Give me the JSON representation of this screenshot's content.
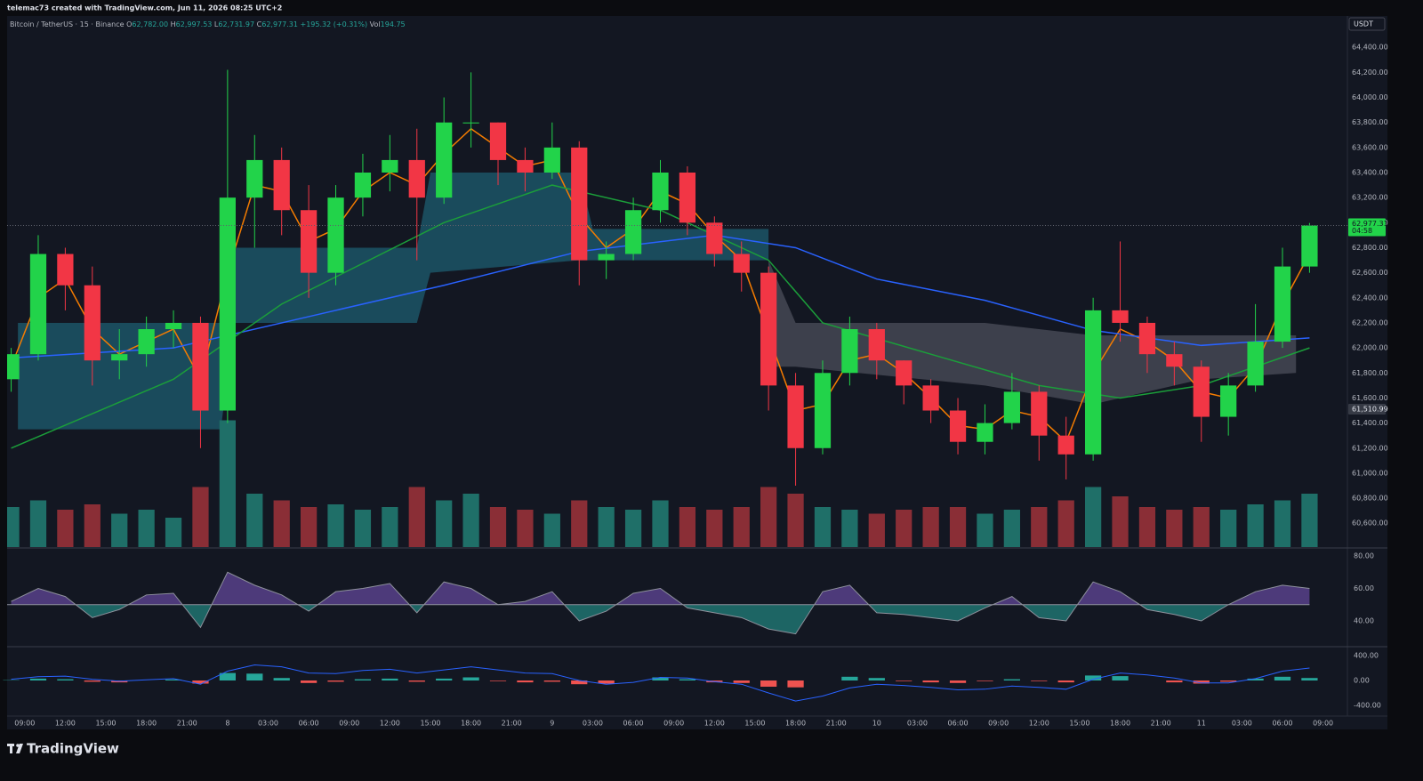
{
  "chart_data": {
    "type": "candlestick",
    "header": "telemac73 created with TradingView.com, Jun 11, 2026 08:25 UTC+2",
    "legend": {
      "symbol": "Bitcoin / TetherUS · 15 · Binance",
      "fields": [
        {
          "key": "O",
          "value": "62,782.00"
        },
        {
          "key": "H",
          "value": "62,997.53"
        },
        {
          "key": "L",
          "value": "62,731.97"
        },
        {
          "key": "C",
          "value": "62,977.31"
        }
      ],
      "change": "+195.32 (+0.31%)",
      "volume_key": "Vol",
      "volume": "194.75"
    },
    "currency": "USDT",
    "footer_brand": "TradingView",
    "xlim": [
      7.7,
      106.8
    ],
    "xticks": [
      {
        "value": 9,
        "label": "09:00"
      },
      {
        "value": 12,
        "label": "12:00"
      },
      {
        "value": 15,
        "label": "15:00"
      },
      {
        "value": 18,
        "label": "18:00"
      },
      {
        "value": 21,
        "label": "21:00"
      },
      {
        "value": 24,
        "label": "8"
      },
      {
        "value": 27,
        "label": "03:00"
      },
      {
        "value": 30,
        "label": "06:00"
      },
      {
        "value": 33,
        "label": "09:00"
      },
      {
        "value": 36,
        "label": "12:00"
      },
      {
        "value": 39,
        "label": "15:00"
      },
      {
        "value": 42,
        "label": "18:00"
      },
      {
        "value": 45,
        "label": "21:00"
      },
      {
        "value": 48,
        "label": "9"
      },
      {
        "value": 51,
        "label": "03:00"
      },
      {
        "value": 54,
        "label": "06:00"
      },
      {
        "value": 57,
        "label": "09:00"
      },
      {
        "value": 60,
        "label": "12:00"
      },
      {
        "value": 63,
        "label": "15:00"
      },
      {
        "value": 66,
        "label": "18:00"
      },
      {
        "value": 69,
        "label": "21:00"
      },
      {
        "value": 72,
        "label": "10"
      },
      {
        "value": 75,
        "label": "03:00"
      },
      {
        "value": 78,
        "label": "06:00"
      },
      {
        "value": 81,
        "label": "09:00"
      },
      {
        "value": 84,
        "label": "12:00"
      },
      {
        "value": 87,
        "label": "15:00"
      },
      {
        "value": 90,
        "label": "18:00"
      },
      {
        "value": 93,
        "label": "21:00"
      },
      {
        "value": 96,
        "label": "11"
      },
      {
        "value": 99,
        "label": "03:00"
      },
      {
        "value": 102,
        "label": "06:00"
      },
      {
        "value": 105,
        "label": "09:00"
      }
    ],
    "ylim": [
      60410,
      64650
    ],
    "yticks": [
      {
        "value": 60600,
        "label": "60,600.00"
      },
      {
        "value": 60800,
        "label": "60,800.00"
      },
      {
        "value": 61000,
        "label": "61,000.00"
      },
      {
        "value": 61200,
        "label": "61,200.00"
      },
      {
        "value": 61400,
        "label": "61,400.00"
      },
      {
        "value": 61600,
        "label": "61,600.00"
      },
      {
        "value": 61800,
        "label": "61,800.00"
      },
      {
        "value": 62000,
        "label": "62,000.00"
      },
      {
        "value": 62200,
        "label": "62,200.00"
      },
      {
        "value": 62400,
        "label": "62,400.00"
      },
      {
        "value": 62600,
        "label": "62,600.00"
      },
      {
        "value": 62800,
        "label": "62,800.00"
      },
      {
        "value": 63000,
        "label": "63,000.00"
      },
      {
        "value": 63200,
        "label": "63,200.00"
      },
      {
        "value": 63400,
        "label": "63,400.00"
      },
      {
        "value": 63600,
        "label": "63,600.00"
      },
      {
        "value": 63800,
        "label": "63,800.00"
      },
      {
        "value": 64000,
        "label": "64,000.00"
      },
      {
        "value": 64200,
        "label": "64,200.00"
      },
      {
        "value": 64400,
        "label": "64,400.00"
      }
    ],
    "grid": false,
    "up_color": "#22d34a",
    "down_color": "#f23645",
    "candles": {
      "x": [
        8,
        10,
        12,
        14,
        16,
        18,
        20,
        22,
        24,
        26,
        28,
        30,
        32,
        34,
        36,
        38,
        40,
        42,
        44,
        46,
        48,
        50,
        52,
        54,
        56,
        58,
        60,
        62,
        64,
        66,
        68,
        70,
        72,
        74,
        76,
        78,
        80,
        82,
        84,
        86,
        88,
        90,
        92,
        94,
        96,
        98,
        100,
        102,
        104
      ],
      "open": [
        61750,
        61950,
        62750,
        62500,
        61900,
        61950,
        62150,
        62200,
        61500,
        63200,
        63500,
        63100,
        62600,
        63200,
        63400,
        63500,
        63200,
        63800,
        63800,
        63500,
        63400,
        63600,
        62700,
        62750,
        63100,
        63400,
        63000,
        62750,
        62600,
        61700,
        61200,
        61800,
        62150,
        61900,
        61700,
        61500,
        61250,
        61400,
        61650,
        61300,
        61150,
        62300,
        62200,
        61950,
        61850,
        61450,
        61700,
        62050,
        62650
      ],
      "high": [
        62000,
        62900,
        62800,
        62650,
        62150,
        62250,
        62300,
        62250,
        64220,
        63700,
        63600,
        63300,
        63300,
        63550,
        63700,
        63750,
        64000,
        64200,
        63800,
        63600,
        63800,
        63650,
        62850,
        63200,
        63500,
        63450,
        63050,
        62850,
        62650,
        61800,
        61900,
        62250,
        62200,
        61900,
        61750,
        61600,
        61550,
        61800,
        61700,
        61450,
        62400,
        62850,
        62250,
        62050,
        61900,
        61800,
        62350,
        62800,
        62997.53
      ],
      "low": [
        61650,
        61900,
        62300,
        61700,
        61750,
        61850,
        62000,
        61200,
        61400,
        62800,
        62900,
        62400,
        62500,
        63050,
        63250,
        62700,
        63150,
        63600,
        63300,
        63250,
        63350,
        62500,
        62550,
        62700,
        63000,
        62900,
        62650,
        62450,
        61500,
        60900,
        61150,
        61700,
        61750,
        61550,
        61400,
        61150,
        61150,
        61350,
        61100,
        60950,
        61100,
        62050,
        61800,
        61700,
        61250,
        61300,
        61650,
        62000,
        62600
      ],
      "close": [
        61950,
        62750,
        62500,
        61900,
        61950,
        62150,
        62200,
        61500,
        63200,
        63500,
        63100,
        62600,
        63200,
        63400,
        63500,
        63200,
        63800,
        63800,
        63500,
        63400,
        63600,
        62700,
        62750,
        63100,
        63400,
        63000,
        62750,
        62600,
        61700,
        61200,
        61800,
        62150,
        61900,
        61700,
        61500,
        61250,
        61400,
        61650,
        61300,
        61150,
        62300,
        62200,
        61950,
        61850,
        61450,
        61700,
        62050,
        62650,
        62977.31
      ],
      "volume": [
        30,
        35,
        28,
        32,
        25,
        28,
        22,
        45,
        95,
        40,
        35,
        30,
        32,
        28,
        30,
        45,
        35,
        40,
        30,
        28,
        25,
        35,
        30,
        28,
        35,
        30,
        28,
        30,
        45,
        40,
        30,
        28,
        25,
        28,
        30,
        30,
        25,
        28,
        30,
        35,
        45,
        38,
        30,
        28,
        30,
        28,
        32,
        35,
        40
      ]
    },
    "volume_lim": [
      0,
      100
    ],
    "volume_up_color": "#1f6f68",
    "volume_down_color": "#8a2e36",
    "series": [
      {
        "color": "#f57c00",
        "x": [
          8,
          10,
          12,
          14,
          16,
          18,
          20,
          22,
          24,
          26,
          28,
          30,
          32,
          34,
          36,
          38,
          40,
          42,
          44,
          46,
          48,
          50,
          52,
          54,
          56,
          58,
          60,
          62,
          64,
          66,
          68,
          70,
          72,
          74,
          76,
          78,
          80,
          82,
          84,
          86,
          88,
          90,
          92,
          94,
          96,
          98,
          100,
          102,
          104
        ],
        "values": [
          61850,
          62400,
          62550,
          62150,
          61950,
          62050,
          62150,
          61750,
          62600,
          63300,
          63250,
          62850,
          62950,
          63250,
          63400,
          63300,
          63550,
          63750,
          63600,
          63450,
          63500,
          63050,
          62800,
          62950,
          63250,
          63150,
          62900,
          62700,
          62100,
          61500,
          61550,
          61900,
          61950,
          61800,
          61600,
          61380,
          61350,
          61500,
          61450,
          61250,
          61800,
          62150,
          62050,
          61900,
          61650,
          61600,
          61850,
          62350,
          62750
        ]
      },
      {
        "color": "#2962ff",
        "x": [
          8,
          20,
          30,
          40,
          50,
          60,
          66,
          72,
          80,
          88,
          96,
          104
        ],
        "values": [
          61920,
          62000,
          62250,
          62500,
          62770,
          62900,
          62800,
          62550,
          62380,
          62140,
          62020,
          62080
        ]
      },
      {
        "color": "#1b9e3a",
        "x": [
          8,
          20,
          28,
          40,
          48,
          56,
          64,
          68,
          76,
          84,
          90,
          96,
          104
        ],
        "values": [
          61200,
          61750,
          62350,
          63000,
          63300,
          63100,
          62700,
          62200,
          61950,
          61700,
          61600,
          61700,
          62000
        ]
      }
    ],
    "clouds": [
      {
        "color": "#1c5566",
        "x": [
          8.5,
          23.5,
          24.5,
          38,
          39,
          50,
          51,
          64
        ],
        "upper": [
          62200,
          62200,
          62800,
          62800,
          63400,
          63400,
          62950,
          62950
        ],
        "lower": [
          61350,
          61350,
          62200,
          62200,
          62600,
          62700,
          62700,
          62700
        ]
      },
      {
        "color": "#454854",
        "x": [
          64,
          66,
          80,
          88,
          96,
          103
        ],
        "upper": [
          62700,
          62200,
          62200,
          62100,
          62100,
          62100
        ],
        "lower": [
          61850,
          61850,
          61700,
          61550,
          61750,
          61800
        ]
      }
    ],
    "last_price_label": "62,977.31",
    "countdown": "04:58",
    "crosshair_price": {
      "value": 61510.99,
      "label": "61,510.99"
    },
    "rsi": {
      "ylim": [
        25.2,
        84.4
      ],
      "yticks": [
        {
          "value": 40,
          "label": "40.00"
        },
        {
          "value": 60,
          "label": "60.00"
        },
        {
          "value": 80,
          "label": "80.00"
        }
      ],
      "mid": 50,
      "line_color": "#8e919c",
      "above_color": "#7e57c2",
      "below_color": "#26a69a",
      "values": [
        52,
        60,
        55,
        42,
        47,
        56,
        57,
        36,
        70,
        62,
        56,
        46,
        58,
        60,
        63,
        45,
        64,
        60,
        50,
        52,
        58,
        40,
        46,
        57,
        60,
        48,
        45,
        42,
        35,
        32,
        58,
        62,
        45,
        44,
        42,
        40,
        48,
        55,
        42,
        40,
        64,
        58,
        47,
        44,
        40,
        50,
        58,
        62,
        60
      ]
    },
    "macd": {
      "ylim": [
        -571,
        514
      ],
      "yticks": [
        {
          "value": -400,
          "label": "-400.00"
        },
        {
          "value": 0,
          "label": "0.00"
        },
        {
          "value": 400,
          "label": "400.00"
        }
      ],
      "line_color": "#2962ff",
      "hist_up_color": "#26a69a",
      "hist_down_color": "#ef5350",
      "values": [
        20,
        60,
        70,
        20,
        -10,
        10,
        30,
        -60,
        150,
        250,
        220,
        120,
        110,
        160,
        180,
        120,
        170,
        220,
        170,
        120,
        110,
        0,
        -60,
        -30,
        50,
        40,
        -20,
        -60,
        -200,
        -330,
        -250,
        -120,
        -60,
        -80,
        -110,
        -150,
        -140,
        -90,
        -110,
        -140,
        20,
        120,
        90,
        40,
        -40,
        -40,
        30,
        150,
        200
      ],
      "histogram": [
        5,
        30,
        20,
        -20,
        -30,
        0,
        15,
        -50,
        120,
        110,
        40,
        -40,
        -20,
        20,
        30,
        -20,
        30,
        50,
        -10,
        -30,
        -20,
        -60,
        -50,
        0,
        50,
        20,
        -30,
        -40,
        -100,
        -110,
        0,
        60,
        40,
        -10,
        -30,
        -40,
        -10,
        20,
        -10,
        -30,
        80,
        70,
        0,
        -30,
        -50,
        -20,
        30,
        60,
        40
      ]
    }
  }
}
